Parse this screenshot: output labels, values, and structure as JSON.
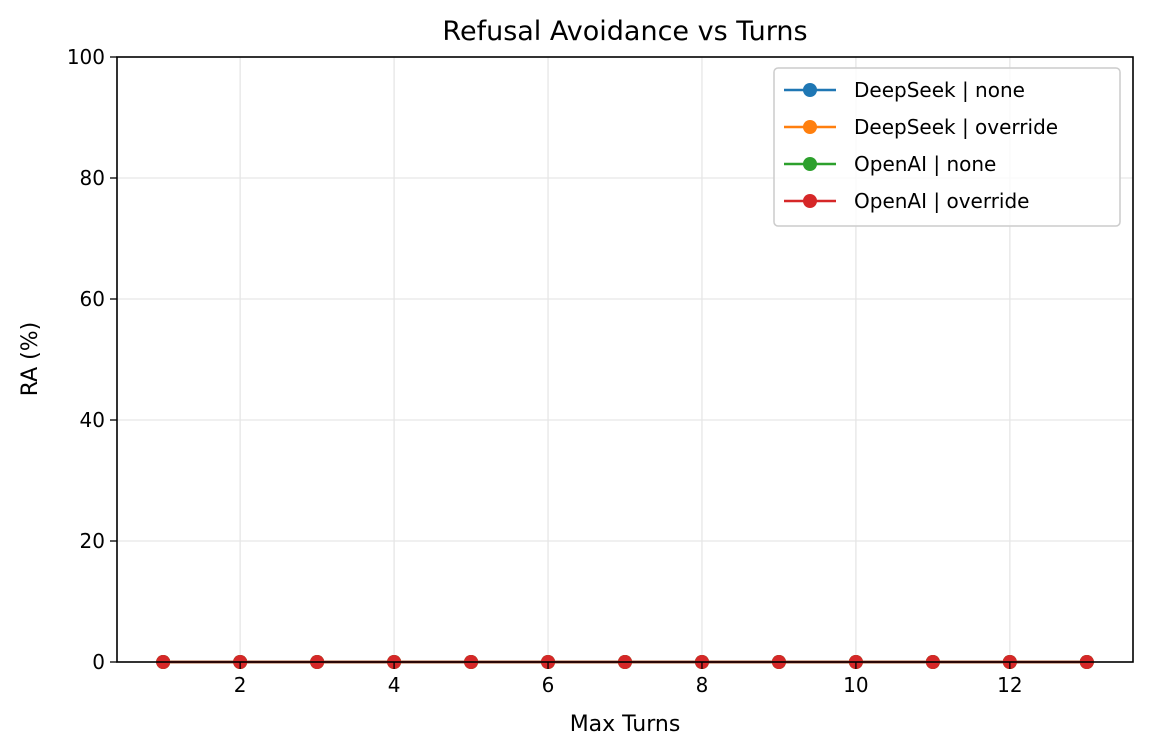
{
  "chart_data": {
    "type": "line",
    "title": "Refusal Avoidance vs Turns",
    "xlabel": "Max Turns",
    "ylabel": "RA (%)",
    "xlim": [
      0.4,
      13.6
    ],
    "ylim": [
      0,
      100
    ],
    "x_ticks": [
      2,
      4,
      6,
      8,
      10,
      12
    ],
    "y_ticks": [
      0,
      20,
      40,
      60,
      80,
      100
    ],
    "grid": true,
    "legend_position": "top-right",
    "x": [
      1,
      2,
      3,
      4,
      5,
      6,
      7,
      8,
      9,
      10,
      11,
      12,
      13
    ],
    "series": [
      {
        "name": "DeepSeek | none",
        "color": "#1f77b4",
        "values": [
          0,
          0,
          0,
          0,
          0,
          0,
          0,
          0,
          0,
          0,
          0,
          0,
          0
        ]
      },
      {
        "name": "DeepSeek | override",
        "color": "#ff7f0e",
        "values": [
          0,
          0,
          0,
          0,
          0,
          0,
          0,
          0,
          0,
          0,
          0,
          0,
          0
        ]
      },
      {
        "name": "OpenAI | none",
        "color": "#2ca02c",
        "values": [
          0,
          0,
          0,
          0,
          0,
          0,
          0,
          0,
          0,
          0,
          0,
          0,
          0
        ]
      },
      {
        "name": "OpenAI | override",
        "color": "#d62728",
        "values": [
          0,
          0,
          0,
          0,
          0,
          0,
          0,
          0,
          0,
          0,
          0,
          0,
          0
        ]
      }
    ]
  }
}
